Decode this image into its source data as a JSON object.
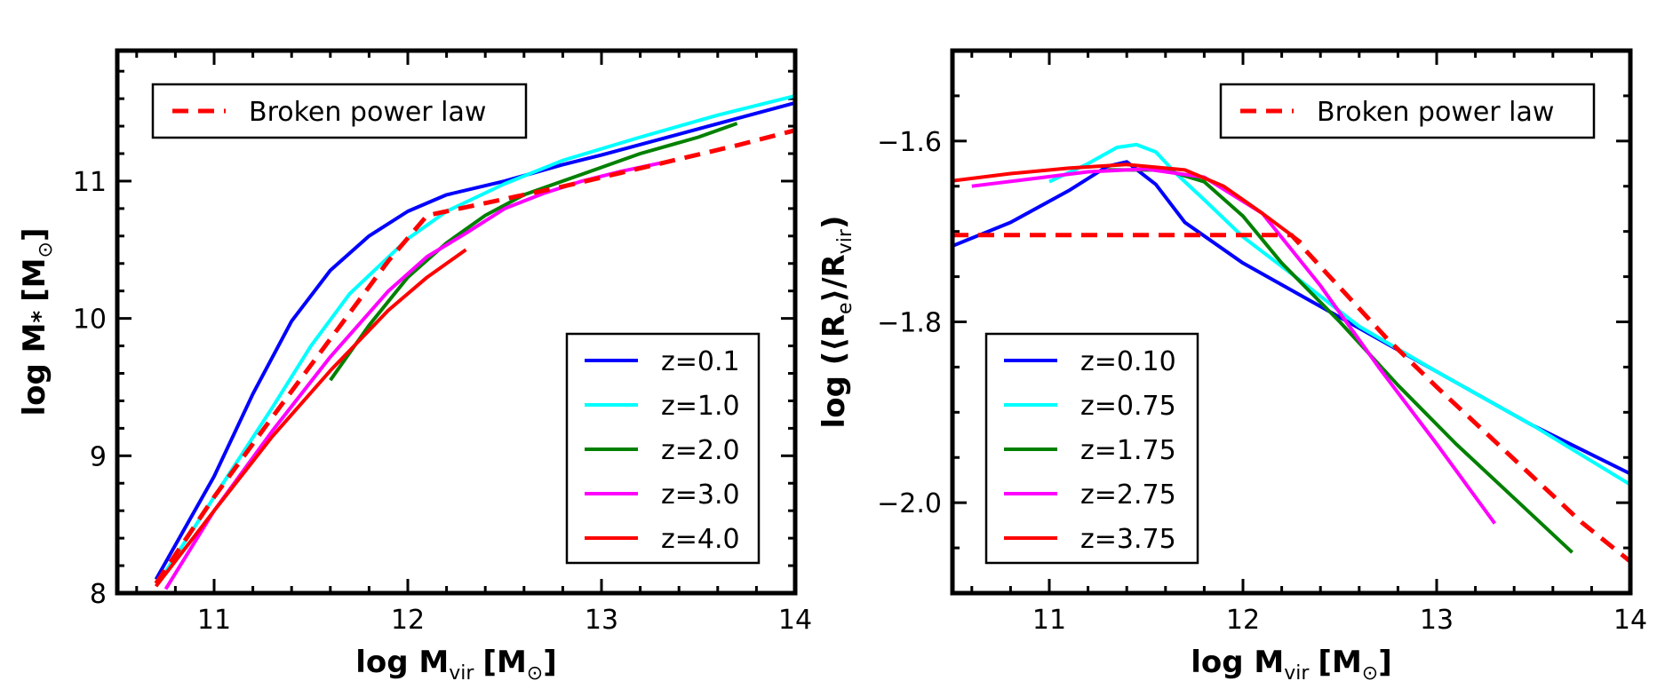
{
  "chart_data": [
    {
      "type": "line",
      "panel": "left",
      "xlabel": "log M_vir [M_sun]",
      "ylabel": "log M_* [M_sun]",
      "xlabel_parts": {
        "main": "log M",
        "sub": "vir",
        "unit": "[M",
        "unit_sub": "⊙",
        "close": "]"
      },
      "ylabel_parts": {
        "main": "log M",
        "sub": "*",
        "unit": "[M",
        "unit_sub": "⊙",
        "close": "]"
      },
      "xlim": [
        10.5,
        14
      ],
      "ylim": [
        8,
        11.95
      ],
      "xticks": [
        11,
        12,
        13,
        14
      ],
      "xtick_labels": [
        "11",
        "12",
        "13",
        "14"
      ],
      "yticks": [
        8,
        9,
        10,
        11
      ],
      "ytick_labels": [
        "8",
        "9",
        "10",
        "11"
      ],
      "legend_top": {
        "placement": "top-left",
        "label": "Broken power law"
      },
      "legend_bottom": {
        "placement": "lower-right"
      },
      "broken_power_law": {
        "name": "Broken power law",
        "color": "#ff0000",
        "x": [
          10.7,
          11.0,
          11.3,
          11.6,
          11.9,
          12.1,
          12.2,
          12.5,
          12.8,
          13.1,
          13.4,
          13.7,
          14.0
        ],
        "y": [
          8.07,
          8.7,
          9.28,
          9.85,
          10.42,
          10.75,
          10.78,
          10.87,
          10.96,
          11.06,
          11.16,
          11.26,
          11.37
        ]
      },
      "series": [
        {
          "name": "z=0.1",
          "color": "#0000ff",
          "x": [
            10.7,
            11.0,
            11.2,
            11.4,
            11.6,
            11.8,
            12.0,
            12.2,
            12.5,
            12.8,
            13.0,
            13.5,
            14.0
          ],
          "y": [
            8.1,
            8.85,
            9.45,
            9.98,
            10.35,
            10.6,
            10.78,
            10.9,
            11.0,
            11.12,
            11.19,
            11.38,
            11.57
          ]
        },
        {
          "name": "z=1.0",
          "color": "#00ffff",
          "x": [
            10.7,
            11.0,
            11.3,
            11.5,
            11.7,
            12.0,
            12.2,
            12.5,
            12.8,
            13.2,
            13.6,
            14.0
          ],
          "y": [
            8.05,
            8.7,
            9.35,
            9.8,
            10.18,
            10.58,
            10.78,
            10.98,
            11.15,
            11.32,
            11.48,
            11.62
          ]
        },
        {
          "name": "z=2.0",
          "color": "#008000",
          "x": [
            11.6,
            11.8,
            12.0,
            12.2,
            12.4,
            12.6,
            12.9,
            13.2,
            13.5,
            13.7
          ],
          "y": [
            9.55,
            9.95,
            10.3,
            10.55,
            10.75,
            10.9,
            11.05,
            11.2,
            11.32,
            11.42
          ]
        },
        {
          "name": "z=3.0",
          "color": "#ff00ff",
          "x": [
            10.75,
            11.0,
            11.3,
            11.6,
            11.9,
            12.1,
            12.3,
            12.5,
            12.7,
            12.9,
            13.1,
            13.3
          ],
          "y": [
            8.03,
            8.6,
            9.18,
            9.72,
            10.2,
            10.45,
            10.62,
            10.8,
            10.91,
            11.0,
            11.07,
            11.13
          ]
        },
        {
          "name": "z=4.0",
          "color": "#ff0000",
          "x": [
            10.7,
            11.0,
            11.3,
            11.6,
            11.9,
            12.1,
            12.3
          ],
          "y": [
            8.05,
            8.6,
            9.14,
            9.62,
            10.06,
            10.3,
            10.5
          ]
        }
      ]
    },
    {
      "type": "line",
      "panel": "right",
      "xlabel": "log M_vir [M_sun]",
      "ylabel": "log (<R_e>/R_vir)",
      "xlabel_parts": {
        "main": "log M",
        "sub": "vir",
        "unit": "[M",
        "unit_sub": "⊙",
        "close": "]"
      },
      "ylabel_parts": {
        "main": "log (⟨R",
        "sub": "e",
        "mid": "⟩/R",
        "sub2": "vir",
        "close": ")"
      },
      "xlim": [
        10.5,
        14
      ],
      "ylim": [
        -2.1,
        -1.5
      ],
      "xticks": [
        11,
        12,
        13,
        14
      ],
      "xtick_labels": [
        "11",
        "12",
        "13",
        "14"
      ],
      "yticks": [
        -2.0,
        -1.8,
        -1.6
      ],
      "ytick_labels": [
        "−2.0",
        "−1.8",
        "−1.6"
      ],
      "legend_top": {
        "placement": "top-right",
        "label": "Broken power law"
      },
      "legend_bottom": {
        "placement": "lower-left"
      },
      "broken_power_law": {
        "name": "Broken power law",
        "color": "#ff0000",
        "x": [
          10.5,
          12.25,
          12.5,
          12.75,
          13.0,
          13.25,
          13.5,
          13.75,
          14.0
        ],
        "y": [
          -1.704,
          -1.704,
          -1.762,
          -1.82,
          -1.872,
          -1.922,
          -1.972,
          -2.022,
          -2.065
        ]
      },
      "series": [
        {
          "name": "z=0.10",
          "color": "#0000ff",
          "x": [
            10.5,
            10.8,
            11.1,
            11.3,
            11.4,
            11.55,
            11.7,
            12.0,
            12.5,
            13.0,
            13.5,
            14.0
          ],
          "y": [
            -1.716,
            -1.69,
            -1.655,
            -1.628,
            -1.623,
            -1.648,
            -1.69,
            -1.735,
            -1.795,
            -1.855,
            -1.915,
            -1.968
          ]
        },
        {
          "name": "z=0.75",
          "color": "#00ffff",
          "x": [
            11.0,
            11.2,
            11.35,
            11.45,
            11.55,
            11.65,
            11.8,
            12.0,
            12.3,
            12.6,
            13.0,
            13.5,
            14.0
          ],
          "y": [
            -1.645,
            -1.625,
            -1.607,
            -1.604,
            -1.612,
            -1.635,
            -1.665,
            -1.706,
            -1.755,
            -1.805,
            -1.855,
            -1.915,
            -1.98
          ]
        },
        {
          "name": "z=1.75",
          "color": "#008000",
          "x": [
            11.3,
            11.6,
            11.8,
            12.0,
            12.2,
            12.5,
            12.8,
            13.1,
            13.4,
            13.7
          ],
          "y": [
            -1.632,
            -1.632,
            -1.645,
            -1.683,
            -1.735,
            -1.8,
            -1.87,
            -1.935,
            -1.995,
            -2.055
          ]
        },
        {
          "name": "z=2.75",
          "color": "#ff00ff",
          "x": [
            10.6,
            10.9,
            11.2,
            11.5,
            11.8,
            12.1,
            12.4,
            12.7,
            13.0,
            13.3
          ],
          "y": [
            -1.65,
            -1.642,
            -1.634,
            -1.631,
            -1.64,
            -1.68,
            -1.76,
            -1.85,
            -1.935,
            -2.023
          ]
        },
        {
          "name": "z=3.75",
          "color": "#ff0000",
          "x": [
            10.5,
            10.8,
            11.1,
            11.4,
            11.7,
            11.9,
            12.1,
            12.3
          ],
          "y": [
            -1.644,
            -1.636,
            -1.63,
            -1.626,
            -1.632,
            -1.65,
            -1.68,
            -1.712
          ]
        }
      ]
    }
  ]
}
